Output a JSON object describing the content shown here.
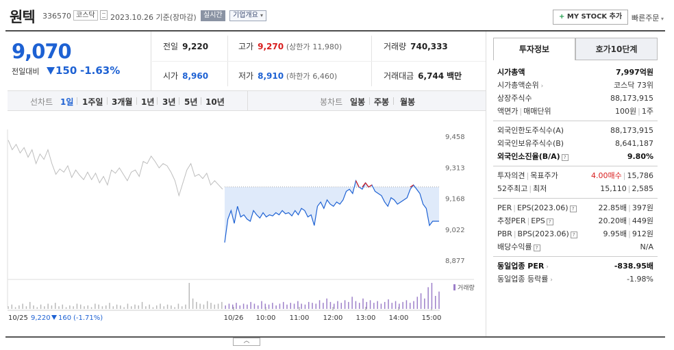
{
  "header": {
    "name": "원텍",
    "code": "336570",
    "market": "코스닥",
    "date_text": "2023.10.26  기준(장마감)",
    "realtime": "실시간",
    "overview": "기업개요",
    "mystock": "MY STOCK 추가",
    "quick_order": "빠른주문"
  },
  "price": {
    "current": "9,070",
    "compare_label": "전일대비",
    "change": "150",
    "change_pct": "-1.63%"
  },
  "stats": {
    "prev_label": "전일",
    "prev": "9,220",
    "high_label": "고가",
    "high": "9,270",
    "upper_label": "(상한가",
    "upper": "11,980)",
    "volume_label": "거래량",
    "volume": "740,333",
    "open_label": "시가",
    "open": "8,960",
    "low_label": "저가",
    "low": "8,910",
    "lower_label": "(하한가",
    "lower": "6,460)",
    "amount_label": "거래대금",
    "amount": "6,744",
    "amount_unit": "백만"
  },
  "chart_tabs": {
    "line_label": "선차트",
    "periods": [
      "1일",
      "1주일",
      "3개월",
      "1년",
      "3년",
      "5년",
      "10년"
    ],
    "active": "1일",
    "candle_label": "봉차트",
    "candles": [
      "일봉",
      "주봉",
      "월봉"
    ]
  },
  "chart_data": {
    "type": "line",
    "y_ticks": [
      "9,458",
      "9,313",
      "9,168",
      "9,022",
      "8,877"
    ],
    "ylim": [
      8877,
      9458
    ],
    "x_ticks": [
      "10/26",
      "10:00",
      "11:00",
      "12:00",
      "13:00",
      "14:00",
      "15:00"
    ],
    "prev_day_label": "10/25",
    "prev_day_close": "9,220",
    "prev_day_change": "160",
    "prev_day_pct": "(-1.71%)",
    "volume_label": "거래량",
    "reference_price": 9220,
    "series": [
      {
        "values": [
          9440,
          9395,
          9420,
          9380,
          9405,
          9360,
          9395,
          9330,
          9375,
          9350,
          9395,
          9330,
          9280,
          9305,
          9290,
          9320,
          9265,
          9300,
          9275,
          9255,
          9290,
          9255,
          9285,
          9240,
          9270,
          9230,
          9300,
          9285,
          9310,
          9280,
          9250,
          9290,
          9300,
          9270,
          9340,
          9330,
          9365,
          9340,
          9310,
          9330,
          9320,
          9290,
          9250,
          9180,
          9240,
          9300,
          9330,
          9270,
          9280,
          9260,
          9285,
          9230,
          9250,
          9230,
          9210
        ]
      },
      {
        "values": [
          8960,
          9070,
          9110,
          9050,
          9130,
          9080,
          9090,
          9070,
          9060,
          9110,
          9090,
          9075,
          9100,
          9080,
          9090,
          9085,
          9100,
          9090,
          9110,
          9095,
          9100,
          9085,
          9110,
          9090,
          9120,
          9110,
          9080,
          9090,
          9040,
          9130,
          9150,
          9120,
          9160,
          9140,
          9130,
          9150,
          9140,
          9160,
          9200,
          9210,
          9190,
          9250,
          9220,
          9210,
          9240,
          9220,
          9230,
          9200,
          9190,
          9180,
          9150,
          9130,
          9170,
          9160,
          9140,
          9150,
          9160,
          9170,
          9210,
          9230,
          9210,
          9190,
          9140,
          9120,
          9040,
          9060,
          9060,
          9060
        ]
      }
    ],
    "volume_values": [
      3,
      5,
      2,
      4,
      6,
      3,
      8,
      4,
      2,
      5,
      3,
      6,
      4,
      7,
      3,
      5,
      2,
      4,
      3,
      6,
      5,
      3,
      4,
      2,
      6,
      5,
      3,
      4,
      7,
      3,
      5,
      4,
      2,
      6,
      3,
      5,
      4,
      8,
      3,
      5,
      2,
      4,
      6,
      3,
      5,
      4,
      2,
      6,
      3,
      5,
      30,
      12,
      8,
      6,
      5,
      9,
      7,
      5,
      6,
      8,
      4,
      6,
      5,
      7,
      4,
      6,
      5,
      8,
      6,
      4,
      9,
      6,
      5,
      7,
      4,
      6,
      8,
      5,
      7,
      6,
      9,
      6,
      5,
      8,
      7,
      6,
      10,
      7,
      12,
      8,
      6,
      9,
      7,
      10,
      8,
      14,
      9,
      7,
      12,
      8,
      10,
      7,
      9,
      6,
      8,
      11,
      7,
      9,
      6,
      8,
      10,
      7,
      9,
      14,
      18,
      12,
      25,
      30,
      15,
      20
    ]
  },
  "right_panel": {
    "tab1": "투자정보",
    "tab2": "호가10단계",
    "rows": {
      "mcap_label": "시가총액",
      "mcap": "7,997억원",
      "mcap_rank_label": "시가총액순위",
      "mcap_rank": "코스닥 73위",
      "shares_label": "상장주식수",
      "shares": "88,173,915",
      "par_label": "액면가",
      "trade_unit_label": "매매단위",
      "par": "100원",
      "trade_unit": "1주",
      "foreign_limit_label": "외국인한도주식수(A)",
      "foreign_limit": "88,173,915",
      "foreign_hold_label": "외국인보유주식수(B)",
      "foreign_hold": "8,641,187",
      "foreign_ratio_label": "외국인소진율(B/A)",
      "foreign_ratio": "9.80%",
      "opinion_label": "투자의견",
      "target_label": "목표주가",
      "opinion": "4.00매수",
      "target": "15,786",
      "w52_high_label": "52주최고",
      "w52_low_label": "최저",
      "w52_high": "15,110",
      "w52_low": "2,585",
      "per_label": "PER",
      "eps_label": "EPS(2023.06)",
      "per": "22.85배",
      "eps": "397원",
      "est_per_label": "추정PER",
      "est_eps_label": "EPS",
      "est_per": "20.20배",
      "est_eps": "449원",
      "pbr_label": "PBR",
      "bps_label": "BPS(2023.06)",
      "pbr": "9.95배",
      "bps": "912원",
      "div_label": "배당수익률",
      "div": "N/A",
      "sector_per_label": "동일업종 PER",
      "sector_per": "-838.95배",
      "sector_chg_label": "동일업종 등락률",
      "sector_chg": "-1.98%"
    }
  },
  "colors": {
    "blue": "#1d61d3",
    "red": "#d81d1d",
    "fill": "#dce8fa",
    "volume": "#9c7ec9"
  }
}
